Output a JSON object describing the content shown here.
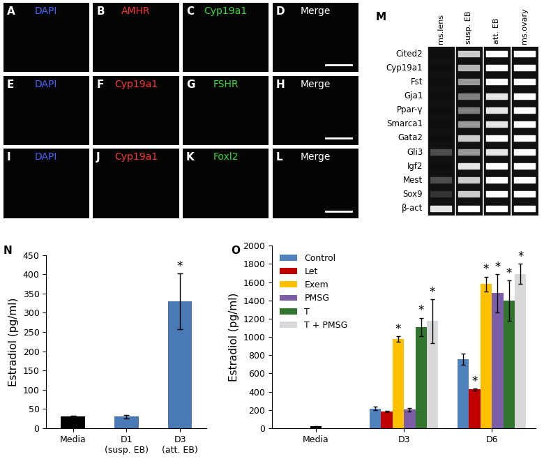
{
  "image_panels": [
    [
      {
        "letter": "A",
        "label": "DAPI",
        "color": "#4466ff"
      },
      {
        "letter": "B",
        "label": "AMHR",
        "color": "#ff3333"
      },
      {
        "letter": "C",
        "label": "Cyp19a1",
        "color": "#33dd33"
      },
      {
        "letter": "D",
        "label": "Merge",
        "color": "#ffffff"
      }
    ],
    [
      {
        "letter": "E",
        "label": "DAPI",
        "color": "#4466ff"
      },
      {
        "letter": "F",
        "label": "Cyp19a1",
        "color": "#ff3333"
      },
      {
        "letter": "G",
        "label": "FSHR",
        "color": "#33dd33"
      },
      {
        "letter": "H",
        "label": "Merge",
        "color": "#ffffff"
      }
    ],
    [
      {
        "letter": "I",
        "label": "DAPI",
        "color": "#4466ff"
      },
      {
        "letter": "J",
        "label": "Cyp19a1",
        "color": "#ff3333"
      },
      {
        "letter": "K",
        "label": "Foxl2",
        "color": "#33dd33"
      },
      {
        "letter": "L",
        "label": "Merge",
        "color": "#ffffff"
      }
    ]
  ],
  "gel": {
    "letter": "M",
    "lanes": [
      "ms.lens",
      "susp. EB",
      "att. EB",
      "ms.ovary"
    ],
    "genes": [
      "Cited2",
      "Cyp19a1",
      "Fst",
      "Gja1",
      "Ppar-γ",
      "Smarca1",
      "Gata2",
      "Gli3",
      "Igf2",
      "Mest",
      "Sox9",
      "β-act"
    ],
    "band_intensity": [
      [
        0.05,
        0.8,
        1,
        1
      ],
      [
        0.05,
        0.7,
        1,
        1
      ],
      [
        0.05,
        0.6,
        1,
        1
      ],
      [
        0.05,
        0.5,
        0.9,
        1
      ],
      [
        0.05,
        0.5,
        0.9,
        1
      ],
      [
        0.05,
        0.6,
        0.9,
        1
      ],
      [
        0.05,
        0.8,
        1,
        1
      ],
      [
        0.3,
        0.6,
        0.9,
        1
      ],
      [
        0.05,
        0.9,
        1,
        1
      ],
      [
        0.3,
        0.8,
        1,
        1
      ],
      [
        0.2,
        0.8,
        1,
        1
      ],
      [
        0.9,
        1,
        1,
        1
      ]
    ]
  },
  "chart_data": [
    {
      "type": "bar",
      "letter": "N",
      "y_label": "Estradiol (pg/ml)",
      "categories": [
        "Media",
        "D1\n(susp. EB)",
        "D3\n(att. EB)"
      ],
      "values": [
        30,
        30,
        330
      ],
      "errors": [
        3,
        5,
        72
      ],
      "colors": [
        "#000000",
        "#4a7ab5",
        "#4a7ab5"
      ],
      "significance": [
        null,
        null,
        "*"
      ],
      "ylim": [
        0,
        450
      ],
      "yticks": [
        0,
        50,
        100,
        150,
        200,
        250,
        300,
        350,
        400,
        450
      ]
    },
    {
      "type": "bar",
      "letter": "O",
      "y_label": "Estradiol (pg/ml)",
      "categories": [
        "Media",
        "D3",
        "D6"
      ],
      "reference": {
        "category": "Media",
        "value": 20,
        "error": 2,
        "color": "#000000"
      },
      "series": [
        {
          "name": "Control",
          "color": "#4f81bd",
          "values": [
            null,
            215,
            755
          ],
          "errors": [
            null,
            20,
            60
          ],
          "significance": [
            null,
            null,
            null
          ]
        },
        {
          "name": "Let",
          "color": "#c00000",
          "values": [
            null,
            180,
            425
          ],
          "errors": [
            null,
            8,
            10
          ],
          "significance": [
            null,
            null,
            "*"
          ]
        },
        {
          "name": "Exem",
          "color": "#ffc000",
          "values": [
            null,
            975,
            1580
          ],
          "errors": [
            null,
            30,
            80
          ],
          "significance": [
            null,
            "*",
            "*"
          ]
        },
        {
          "name": "PMSG",
          "color": "#7b5ea7",
          "values": [
            null,
            205,
            1480
          ],
          "errors": [
            null,
            20,
            210
          ],
          "significance": [
            null,
            null,
            "*"
          ]
        },
        {
          "name": "T",
          "color": "#31752f",
          "values": [
            null,
            1110,
            1400
          ],
          "errors": [
            null,
            100,
            220
          ],
          "significance": [
            null,
            "*",
            "*"
          ]
        },
        {
          "name": "T + PMSG",
          "color": "#d9d9d9",
          "values": [
            null,
            1175,
            1690
          ],
          "errors": [
            null,
            240,
            110
          ],
          "significance": [
            null,
            "*",
            "*"
          ]
        }
      ],
      "legend": "upper left",
      "ylim": [
        0,
        2000
      ],
      "yticks": [
        0,
        200,
        400,
        600,
        800,
        1000,
        1200,
        1400,
        1600,
        1800,
        2000
      ]
    }
  ]
}
